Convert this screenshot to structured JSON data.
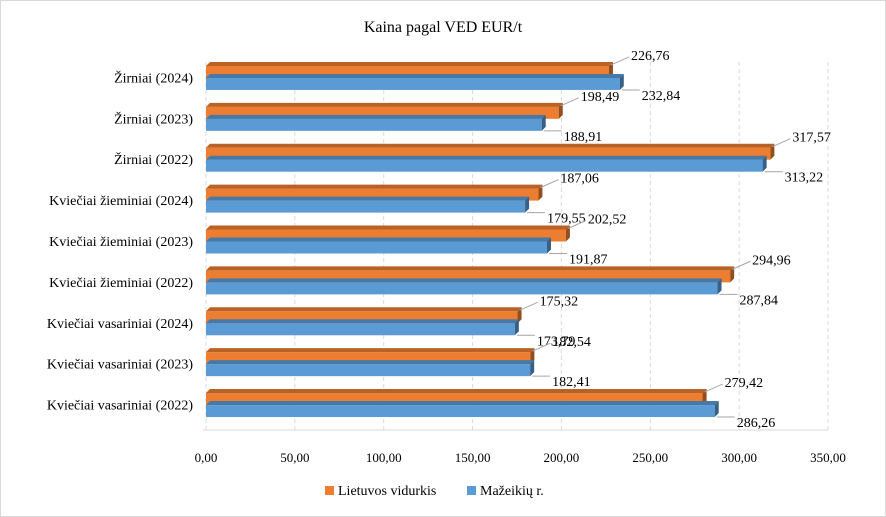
{
  "chart_data": {
    "type": "bar",
    "orientation": "horizontal",
    "title": "Kaina pagal VED EUR/t",
    "categories": [
      "Žirniai (2024)",
      "Žirniai (2023)",
      "Žirniai (2022)",
      "Kviečiai žieminiai (2024)",
      "Kviečiai žieminiai (2023)",
      "Kviečiai žieminiai (2022)",
      "Kviečiai vasariniai     (2024)",
      "Kviečiai vasariniai (2023)",
      "Kviečiai vasariniai (2022)"
    ],
    "series": [
      {
        "name": "Lietuvos vidurkis",
        "color": "#ED7D31",
        "values": [
          226.76,
          198.49,
          317.57,
          187.06,
          202.52,
          294.96,
          175.32,
          182.54,
          279.42
        ],
        "labels": [
          "226,76",
          "198,49",
          "317,57",
          "187,06",
          "202,52",
          "294,96",
          "175,32",
          "182,54",
          "279,42"
        ]
      },
      {
        "name": "Mažeikių r.",
        "color": "#5B9BD5",
        "values": [
          232.84,
          188.91,
          313.22,
          179.55,
          191.87,
          287.84,
          173.79,
          182.41,
          286.26
        ],
        "labels": [
          "232,84",
          "188,91",
          "313,22",
          "179,55",
          "191,87",
          "287,84",
          "173,79",
          "182,41",
          "286,26"
        ]
      }
    ],
    "xlim": [
      0,
      350
    ],
    "x_ticks": [
      "0,00",
      "50,00",
      "100,00",
      "150,00",
      "200,00",
      "250,00",
      "300,00",
      "350,00"
    ],
    "xlabel": "",
    "ylabel": "",
    "grid": "vertical dashed",
    "legend_position": "bottom"
  }
}
